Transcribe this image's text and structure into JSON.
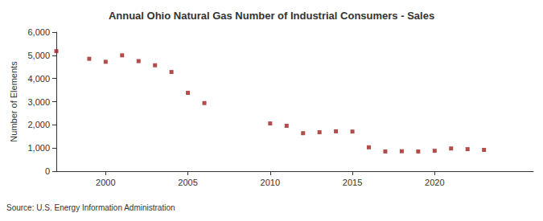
{
  "chart_data": {
    "type": "scatter",
    "title": "Annual Ohio Natural Gas Number of Industrial Consumers - Sales",
    "y_label": "Number of Elements",
    "source": "Source: U.S. Energy Information Administration",
    "x": [
      1997,
      1999,
      2000,
      2001,
      2002,
      2003,
      2004,
      2005,
      2006,
      2010,
      2011,
      2012,
      2013,
      2014,
      2015,
      2016,
      2017,
      2018,
      2019,
      2020,
      2021,
      2022,
      2023
    ],
    "values": [
      5180,
      4850,
      4720,
      5000,
      4750,
      4570,
      4280,
      3380,
      2940,
      2060,
      1960,
      1640,
      1680,
      1720,
      1710,
      1030,
      850,
      860,
      850,
      880,
      980,
      950,
      920
    ],
    "color": "#a31f1f",
    "marker": "square",
    "xlim": [
      1997,
      2026
    ],
    "xticks": [
      2000,
      2005,
      2010,
      2015,
      2020
    ],
    "ylim": [
      0,
      6000
    ],
    "yticks": [
      0,
      {
        "value": 1000,
        "label": "1,000"
      },
      {
        "value": 2000,
        "label": "2,000"
      },
      {
        "value": 3000,
        "label": "3,000"
      },
      {
        "value": 4000,
        "label": "4,000"
      },
      {
        "value": 5000,
        "label": "5,000"
      },
      {
        "value": 6000,
        "label": "6,000"
      }
    ],
    "grid": false
  }
}
